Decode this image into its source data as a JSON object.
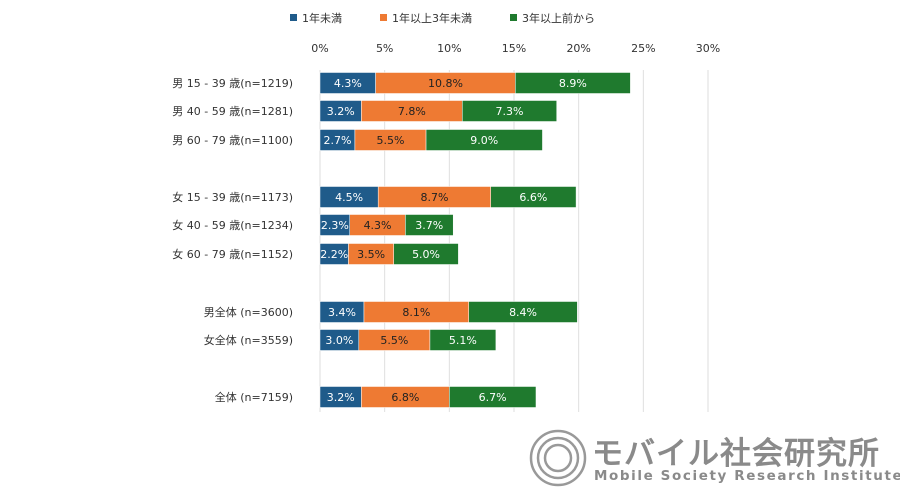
{
  "chart_data": {
    "type": "bar",
    "orientation": "horizontal",
    "stacked": true,
    "title": "",
    "xlabel": "",
    "ylabel": "",
    "xlim": [
      0,
      30
    ],
    "xticks": [
      "0%",
      "5%",
      "10%",
      "15%",
      "20%",
      "25%",
      "30%"
    ],
    "grid": true,
    "legend_position": "top",
    "categories": [
      "男 15 - 39 歳(n=1219)",
      "男 40 - 59 歳(n=1281)",
      "男 60 - 79 歳(n=1100)",
      "女 15 - 39 歳(n=1173)",
      "女 40 - 59 歳(n=1234)",
      "女 60 - 79 歳(n=1152)",
      "男全体 (n=3600)",
      "女全体 (n=3559)",
      "全体 (n=7159)"
    ],
    "series": [
      {
        "name": "1年未満",
        "color": "#1f5b8a",
        "values": [
          4.3,
          3.2,
          2.7,
          4.5,
          2.3,
          2.2,
          3.4,
          3.0,
          3.2
        ]
      },
      {
        "name": "1年以上3年未満",
        "color": "#ee7a33",
        "values": [
          10.8,
          7.8,
          5.5,
          8.7,
          4.3,
          3.5,
          8.1,
          5.5,
          6.8
        ]
      },
      {
        "name": "3年以上前から",
        "color": "#1f7a2e",
        "values": [
          8.9,
          7.3,
          9.0,
          6.6,
          3.7,
          5.0,
          8.4,
          5.1,
          6.7
        ]
      }
    ]
  },
  "logo": {
    "name_ja": "モバイル社会研究所",
    "name_en": "Mobile Society Research Institute"
  }
}
